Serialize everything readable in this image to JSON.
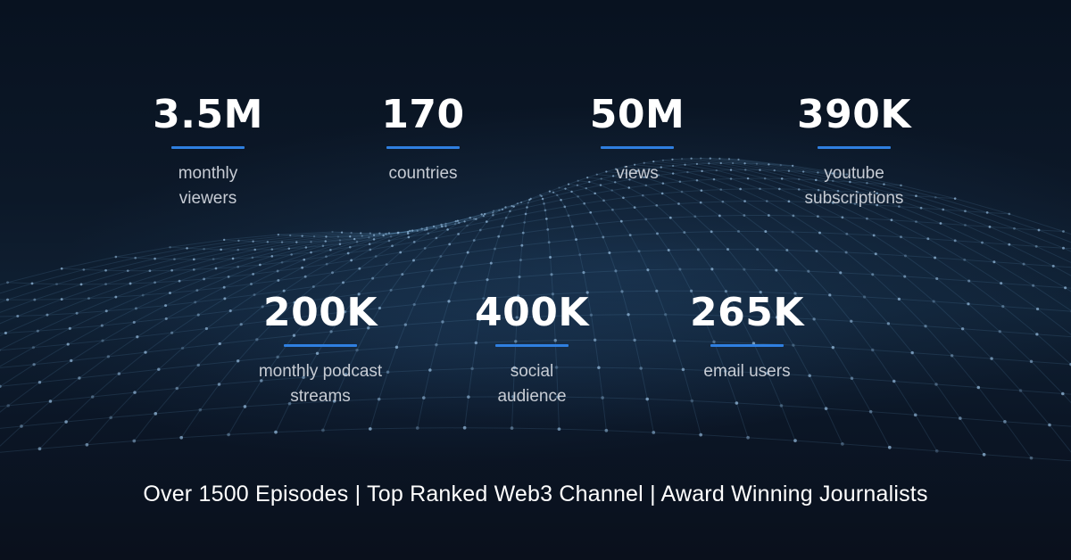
{
  "stats_row_1": [
    {
      "value": "3.5M",
      "label": "monthly\nviewers"
    },
    {
      "value": "170",
      "label": "countries"
    },
    {
      "value": "50M",
      "label": "views"
    },
    {
      "value": "390K",
      "label": "youtube\nsubscriptions"
    }
  ],
  "stats_row_2": [
    {
      "value": "200K",
      "label": "monthly podcast\nstreams"
    },
    {
      "value": "400K",
      "label": "social\naudience"
    },
    {
      "value": "265K",
      "label": "email users"
    }
  ],
  "tagline": "Over 1500 Episodes | Top Ranked Web3 Channel | Award Winning Journalists",
  "colors": {
    "accent": "#2f7fe0",
    "background": "#0b1220",
    "text": "#ffffff",
    "label_text": "#c7ccd4"
  }
}
